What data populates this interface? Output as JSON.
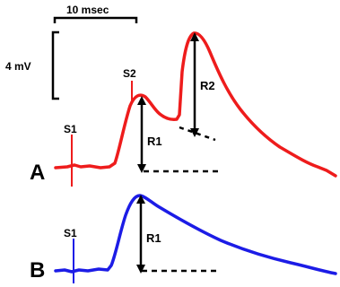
{
  "scale_bar": {
    "time_label": "10 msec",
    "voltage_label": "4 mV"
  },
  "panel_a": {
    "label": "A",
    "stim1_label": "S1",
    "stim2_label": "S2",
    "response1_label": "R1",
    "response2_label": "R2",
    "trace_color": "#ee1c1c",
    "stim_color": "#ee1c1c"
  },
  "panel_b": {
    "label": "B",
    "stim1_label": "S1",
    "response1_label": "R1",
    "trace_color": "#1c1ce6",
    "stim_color": "#1c1ce6"
  },
  "annotation_color": "#000000"
}
